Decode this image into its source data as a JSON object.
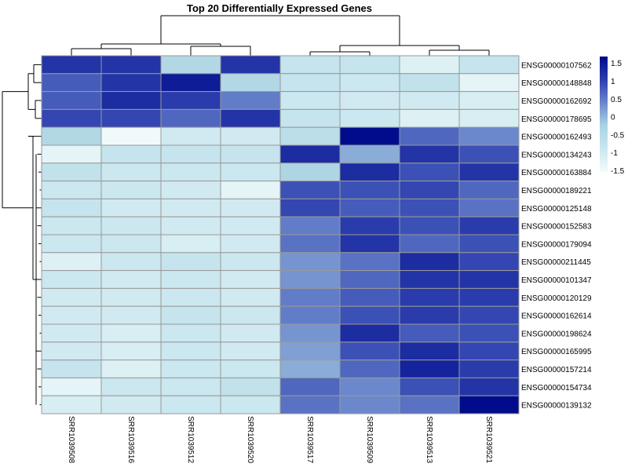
{
  "chart_data": {
    "type": "heatmap",
    "title": "Top 20 Differentially Expressed Genes",
    "columns": [
      "SRR1039508",
      "SRR1039516",
      "SRR1039512",
      "SRR1039520",
      "SRR1039517",
      "SRR1039509",
      "SRR1039513",
      "SRR1039521"
    ],
    "rows": [
      "ENSG00000107562",
      "ENSG00000148848",
      "ENSG00000162692",
      "ENSG00000178695",
      "ENSG00000162493",
      "ENSG00000134243",
      "ENSG00000163884",
      "ENSG00000189221",
      "ENSG00000125148",
      "ENSG00000152583",
      "ENSG00000179094",
      "ENSG00000211445",
      "ENSG00000101347",
      "ENSG00000120129",
      "ENSG00000162614",
      "ENSG00000198624",
      "ENSG00000165995",
      "ENSG00000157214",
      "ENSG00000154734",
      "ENSG00000139132"
    ],
    "values": [
      [
        1.2,
        1.2,
        -0.4,
        1.2,
        -0.8,
        -0.8,
        -1.2,
        -0.8
      ],
      [
        0.8,
        1.2,
        1.5,
        -0.4,
        -0.8,
        -0.9,
        -0.7,
        -1.3
      ],
      [
        0.8,
        1.3,
        1.1,
        0.5,
        -0.9,
        -1.0,
        -1.0,
        -1.1
      ],
      [
        1.0,
        1.0,
        0.7,
        1.2,
        -0.8,
        -0.9,
        -1.2,
        -1.1
      ],
      [
        -0.4,
        -1.5,
        -1.0,
        -1.0,
        -0.6,
        2.0,
        0.7,
        0.4
      ],
      [
        -1.3,
        -0.8,
        -0.8,
        -0.8,
        1.3,
        0.1,
        1.2,
        0.9
      ],
      [
        -0.7,
        -0.9,
        -0.9,
        -0.9,
        -0.3,
        1.3,
        0.9,
        1.2
      ],
      [
        -0.9,
        -0.9,
        -1.0,
        -1.3,
        0.9,
        0.9,
        1.0,
        0.7
      ],
      [
        -0.8,
        -1.0,
        -1.0,
        -1.0,
        1.0,
        0.8,
        0.9,
        0.6
      ],
      [
        -0.9,
        -0.9,
        -1.0,
        -1.0,
        0.5,
        1.1,
        0.9,
        1.1
      ],
      [
        -0.9,
        -0.9,
        -1.1,
        -1.0,
        0.6,
        1.2,
        0.7,
        0.9
      ],
      [
        -1.2,
        -0.9,
        -0.8,
        -0.9,
        0.3,
        0.6,
        1.3,
        1.0
      ],
      [
        -0.9,
        -1.0,
        -0.9,
        -1.0,
        0.3,
        0.7,
        1.2,
        1.2
      ],
      [
        -1.0,
        -1.0,
        -0.9,
        -1.0,
        0.5,
        0.8,
        1.1,
        1.1
      ],
      [
        -1.0,
        -1.0,
        -0.8,
        -0.9,
        0.5,
        0.9,
        1.1,
        1.0
      ],
      [
        -1.0,
        -1.1,
        -0.9,
        -1.0,
        0.3,
        1.3,
        0.8,
        0.9
      ],
      [
        -1.0,
        -1.1,
        -0.9,
        -1.0,
        0.2,
        0.9,
        1.3,
        1.0
      ],
      [
        -0.8,
        -1.2,
        -0.9,
        -0.9,
        0.1,
        0.7,
        1.4,
        1.1
      ],
      [
        -1.3,
        -0.9,
        -0.9,
        -0.7,
        0.7,
        0.4,
        0.9,
        1.2
      ],
      [
        -1.1,
        -1.0,
        -0.9,
        -0.9,
        0.6,
        0.4,
        0.6,
        1.7
      ]
    ],
    "color_scale": {
      "min": -1.5,
      "max": 1.7,
      "colors": [
        "#f0fafb",
        "#c8e6ee",
        "#aad3e2",
        "#6a86cc",
        "#2d3fae",
        "#000c8c"
      ]
    },
    "legend": {
      "ticks": [
        "1.5",
        "1",
        "0.5",
        "0",
        "-0.5",
        "-1",
        "-1.5"
      ],
      "placement": "right"
    },
    "dendrograms": [
      "rows",
      "columns"
    ]
  }
}
